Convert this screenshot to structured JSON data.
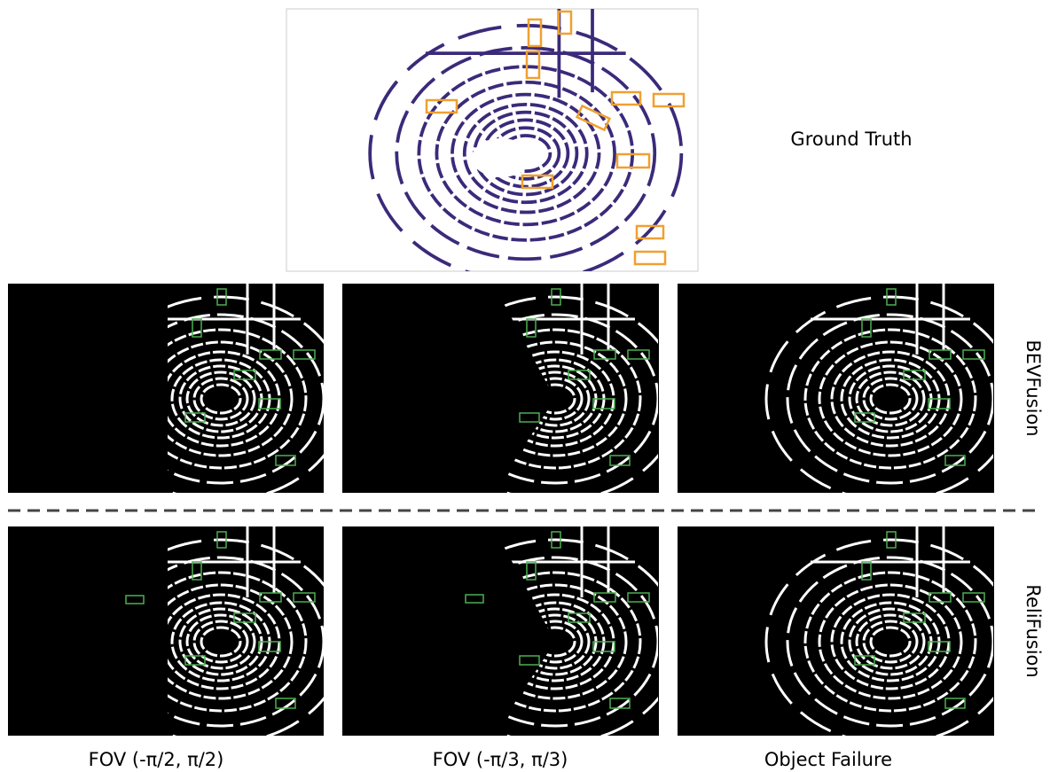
{
  "figure": {
    "top_label": "Ground Truth",
    "row_labels": [
      "BEVFusion",
      "ReliFusion"
    ],
    "column_labels": [
      "FOV (-π/2, π/2)",
      "FOV (-π/3, π/3)",
      "Object Failure"
    ]
  }
}
